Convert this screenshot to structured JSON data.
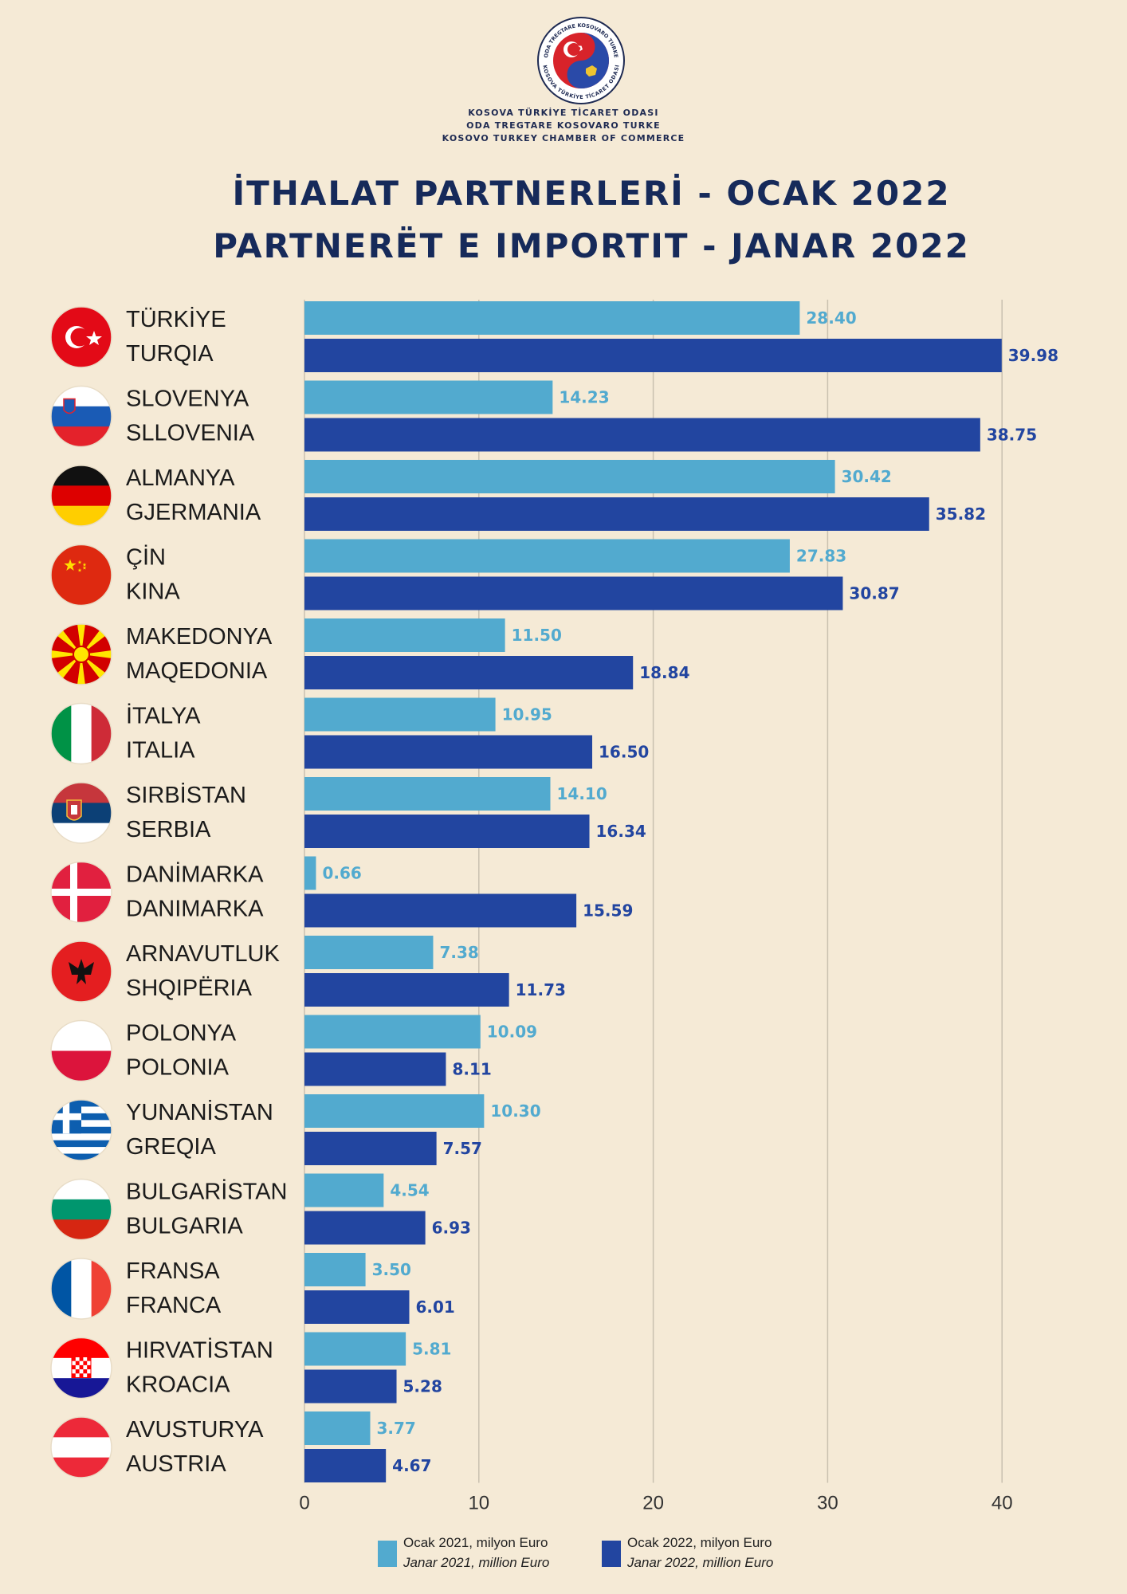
{
  "header": {
    "org_lines": [
      "KOSOVA TÜRKİYE TİCARET ODASI",
      "ODA TREGTARE KOSOVARO TURKE",
      "KOSOVO TURKEY CHAMBER OF COMMERCE"
    ],
    "logo_text_top": "ODA TREGTARE KOSOVARO TURKE",
    "logo_text_bottom": "KOSOVA TÜRKİYE TİCARET ODASI",
    "title_line1": "İTHALAT PARTNERLERİ - OCAK 2022",
    "title_line2": "PARTNERËT E IMPORTIT - JANAR 2022"
  },
  "colors": {
    "background": "#f5ead6",
    "series_2021": "#52aacf",
    "series_2022": "#2245a0",
    "title": "#162a5a",
    "grid": "#c9c0b0"
  },
  "chart_data": {
    "type": "bar",
    "orientation": "horizontal",
    "unit": "million Euro",
    "xlim": [
      0,
      40
    ],
    "xticks": [
      0,
      10,
      20,
      30,
      40
    ],
    "grid": true,
    "legend_position": "bottom",
    "categories": [
      {
        "tr": "TÜRKİYE",
        "sq": "TURQIA",
        "flag": "turkey-flag-icon"
      },
      {
        "tr": "SLOVENYA",
        "sq": "SLLOVENIA",
        "flag": "slovenia-flag-icon"
      },
      {
        "tr": "ALMANYA",
        "sq": "GJERMANIA",
        "flag": "germany-flag-icon"
      },
      {
        "tr": "ÇİN",
        "sq": "KINA",
        "flag": "china-flag-icon"
      },
      {
        "tr": "MAKEDONYA",
        "sq": "MAQEDONIA",
        "flag": "north-macedonia-flag-icon"
      },
      {
        "tr": "İTALYA",
        "sq": "ITALIA",
        "flag": "italy-flag-icon"
      },
      {
        "tr": "SIRBİSTAN",
        "sq": "SERBIA",
        "flag": "serbia-flag-icon"
      },
      {
        "tr": "DANİMARKA",
        "sq": "DANIMARKA",
        "flag": "denmark-flag-icon"
      },
      {
        "tr": "ARNAVUTLUK",
        "sq": "SHQIPËRIA",
        "flag": "albania-flag-icon"
      },
      {
        "tr": "POLONYA",
        "sq": "POLONIA",
        "flag": "poland-flag-icon"
      },
      {
        "tr": "YUNANİSTAN",
        "sq": "GREQIA",
        "flag": "greece-flag-icon"
      },
      {
        "tr": "BULGARİSTAN",
        "sq": "BULGARIA",
        "flag": "bulgaria-flag-icon"
      },
      {
        "tr": "FRANSA",
        "sq": "FRANCA",
        "flag": "france-flag-icon"
      },
      {
        "tr": "HIRVATİSTAN",
        "sq": "KROACIA",
        "flag": "croatia-flag-icon"
      },
      {
        "tr": "AVUSTURYA",
        "sq": "AUSTRIA",
        "flag": "austria-flag-icon"
      }
    ],
    "series": [
      {
        "key": "2021",
        "legend_line1": "Ocak 2021, milyon Euro",
        "legend_line2": "Janar 2021, million Euro",
        "values": [
          28.4,
          14.23,
          30.42,
          27.83,
          11.5,
          10.95,
          14.1,
          0.66,
          7.38,
          10.09,
          10.3,
          4.54,
          3.5,
          5.81,
          3.77
        ],
        "labels": [
          "28.40",
          "14.23",
          "30.42",
          "27.83",
          "11.50",
          "10.95",
          "14.10",
          "0.66",
          "7.38",
          "10.09",
          "10.30",
          "4.54",
          "3.50",
          "5.81",
          "3.77"
        ]
      },
      {
        "key": "2022",
        "legend_line1": "Ocak 2022, milyon Euro",
        "legend_line2": "Janar 2022, million Euro",
        "values": [
          39.98,
          38.75,
          35.82,
          30.87,
          18.84,
          16.5,
          16.34,
          15.59,
          11.73,
          8.11,
          7.57,
          6.93,
          6.01,
          5.28,
          4.67
        ],
        "labels": [
          "39.98",
          "38.75",
          "35.82",
          "30.87",
          "18.84",
          "16.50",
          "16.34",
          "15.59",
          "11.73",
          "8.11",
          "7.57",
          "6.93",
          "6.01",
          "5.28",
          "4.67"
        ]
      }
    ]
  }
}
